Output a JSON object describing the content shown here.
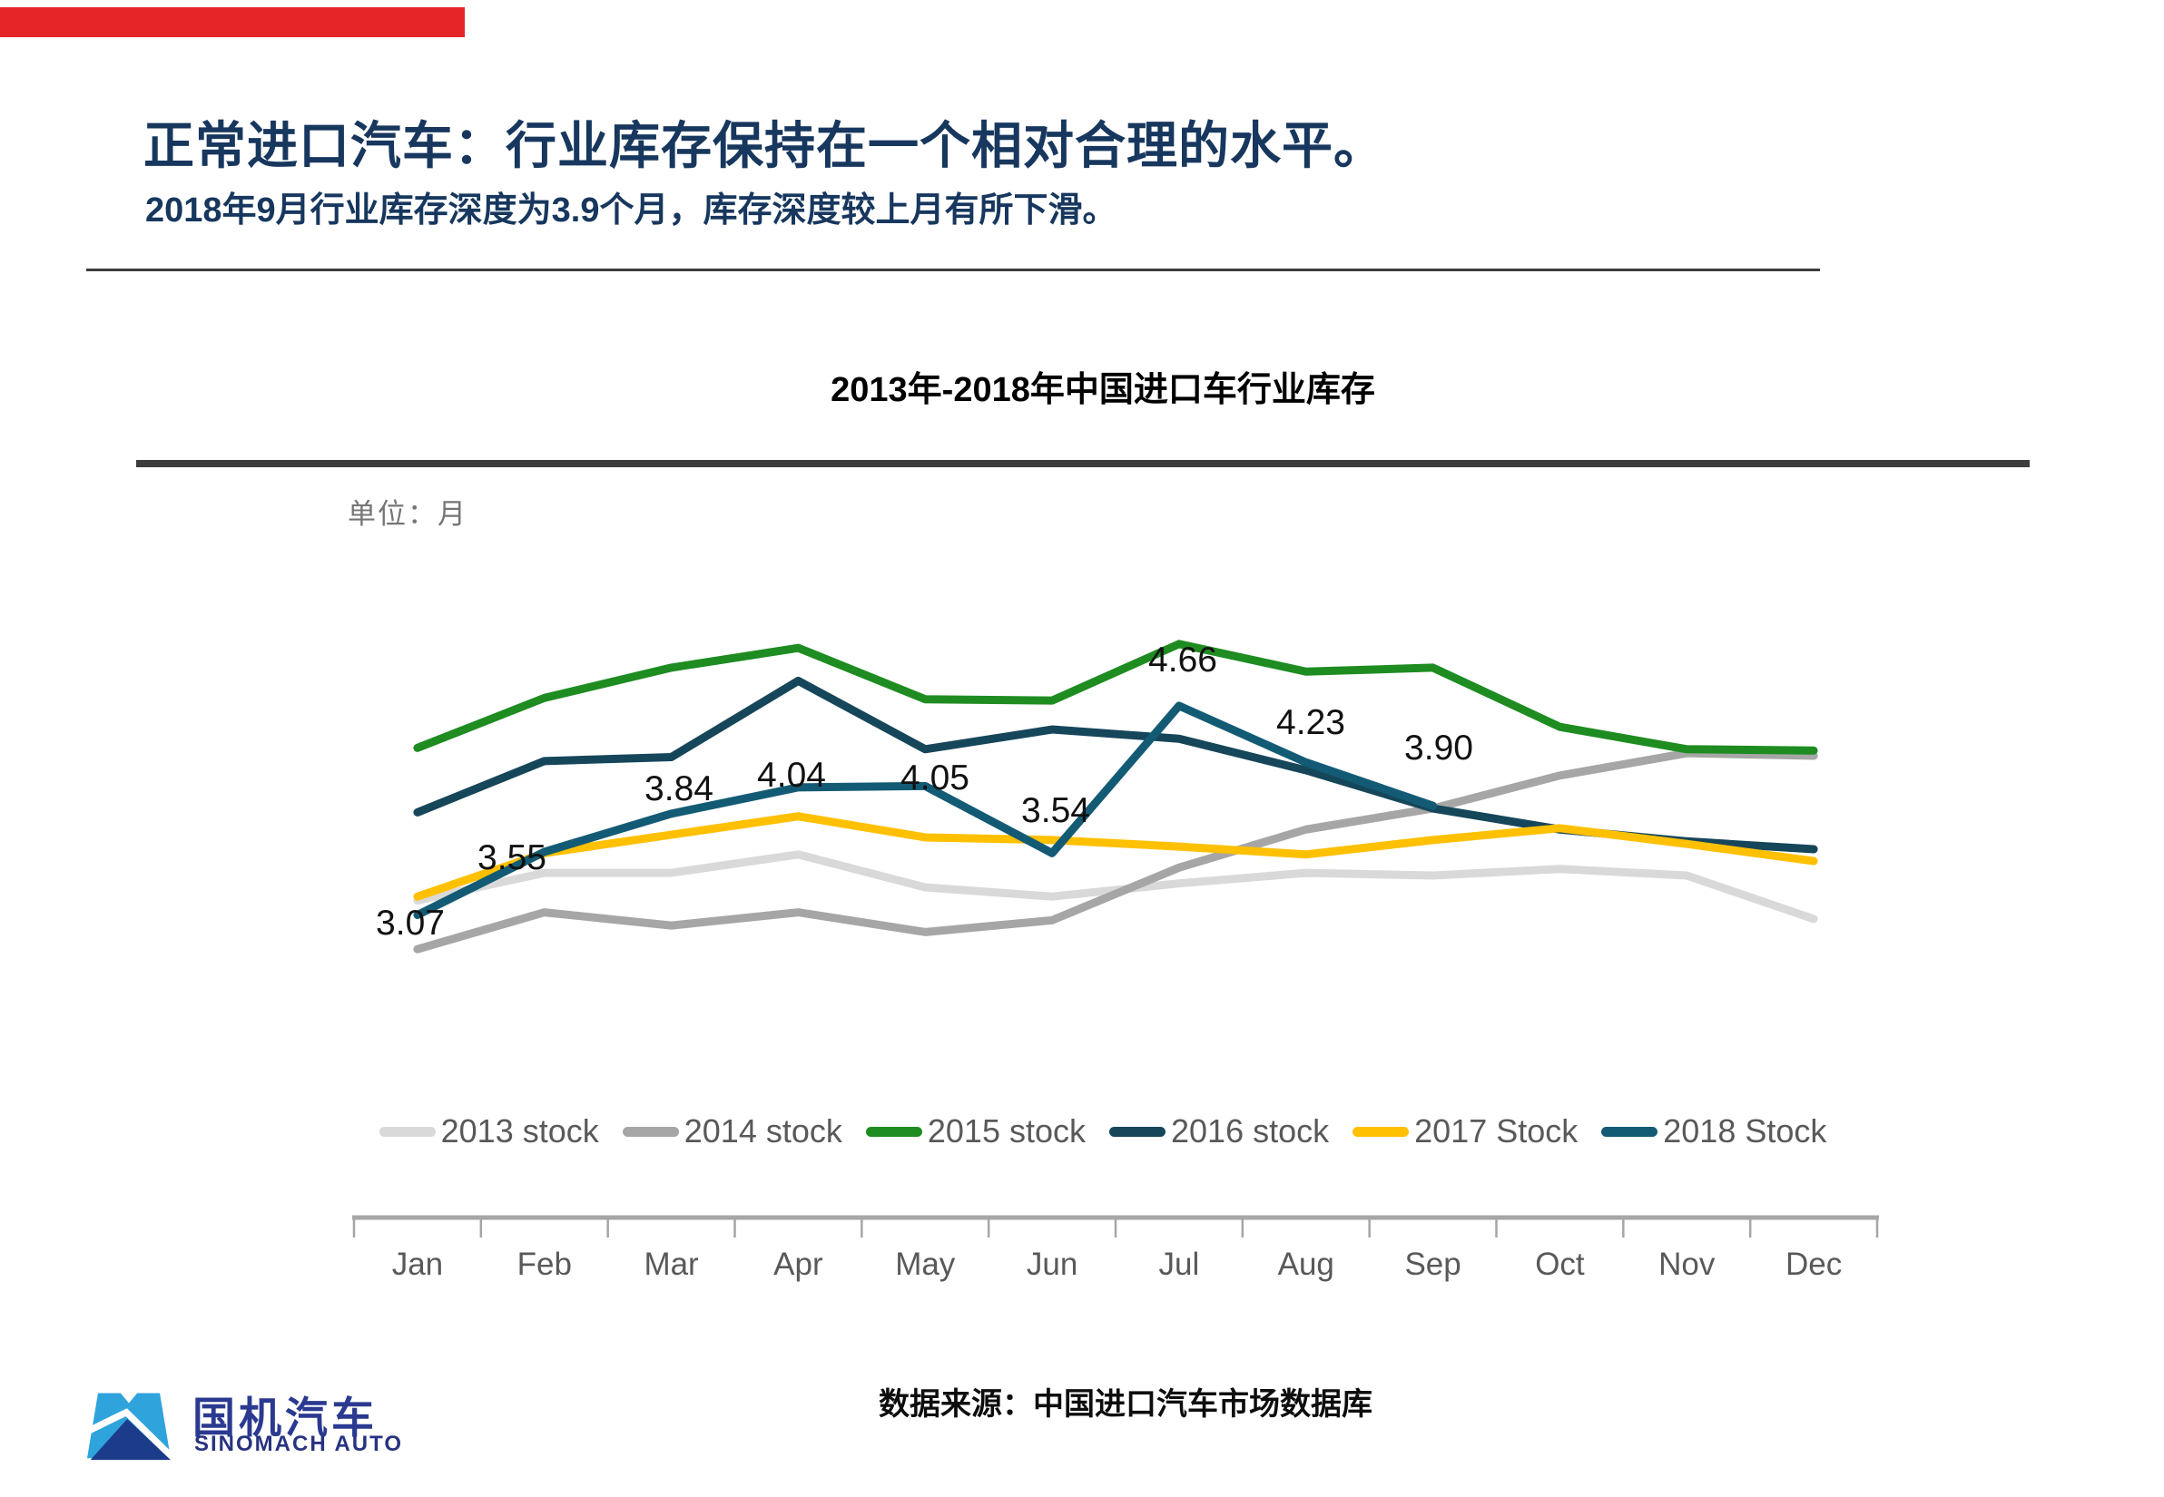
{
  "page": {
    "background": "#ffffff",
    "accent_bar_color": "#e52528"
  },
  "header": {
    "title": "正常进口汽车：行业库存保持在一个相对合理的水平。",
    "subtitle": "2018年9月行业库存深度为3.9个月，库存深度较上月有所下滑。"
  },
  "chart_data": {
    "type": "line",
    "title": "2013年-2018年中国进口车行业库存",
    "unit_label": "单位：月",
    "xlabel": "",
    "ylabel": "",
    "categories": [
      "Jan",
      "Feb",
      "Mar",
      "Apr",
      "May",
      "Jun",
      "Jul",
      "Aug",
      "Sep",
      "Oct",
      "Nov",
      "Dec"
    ],
    "y_axis_visible": false,
    "ylim": [
      0.8,
      5.8
    ],
    "grid": false,
    "legend_position": "bottom",
    "series": [
      {
        "name": "2013 stock",
        "color": "#d9d9d9",
        "values": [
          3.18,
          3.39,
          3.39,
          3.53,
          3.28,
          3.21,
          3.31,
          3.39,
          3.37,
          3.42,
          3.37,
          3.04
        ]
      },
      {
        "name": "2014 stock",
        "color": "#a6a6a6",
        "values": [
          2.81,
          3.09,
          2.99,
          3.09,
          2.94,
          3.03,
          3.43,
          3.72,
          3.88,
          4.13,
          4.3,
          4.28
        ]
      },
      {
        "name": "2015 stock",
        "color": "#1e8c21",
        "values": [
          4.34,
          4.72,
          4.95,
          5.1,
          4.71,
          4.7,
          5.13,
          4.92,
          4.95,
          4.5,
          4.33,
          4.32
        ]
      },
      {
        "name": "2016 stock",
        "color": "#16465a",
        "values": [
          3.85,
          4.24,
          4.27,
          4.85,
          4.33,
          4.48,
          4.41,
          4.17,
          3.88,
          3.72,
          3.63,
          3.57
        ]
      },
      {
        "name": "2017 Stock",
        "color": "#ffc000",
        "values": [
          3.21,
          3.54,
          3.68,
          3.82,
          3.66,
          3.64,
          3.59,
          3.53,
          3.64,
          3.73,
          3.61,
          3.48
        ]
      },
      {
        "name": "2018 Stock",
        "color": "#135b75",
        "values": [
          3.07,
          3.55,
          3.84,
          4.04,
          4.05,
          3.54,
          4.66,
          4.23,
          3.9
        ],
        "data_labels": [
          "3.07",
          "3.55",
          "3.84",
          "4.04",
          "4.05",
          "3.54",
          "4.66",
          "4.23",
          "3.90"
        ]
      }
    ]
  },
  "footer": {
    "logo_cn": "国机汽车",
    "logo_en": "SINOMACH AUTO",
    "source": "数据来源：中国进口汽车市场数据库"
  }
}
